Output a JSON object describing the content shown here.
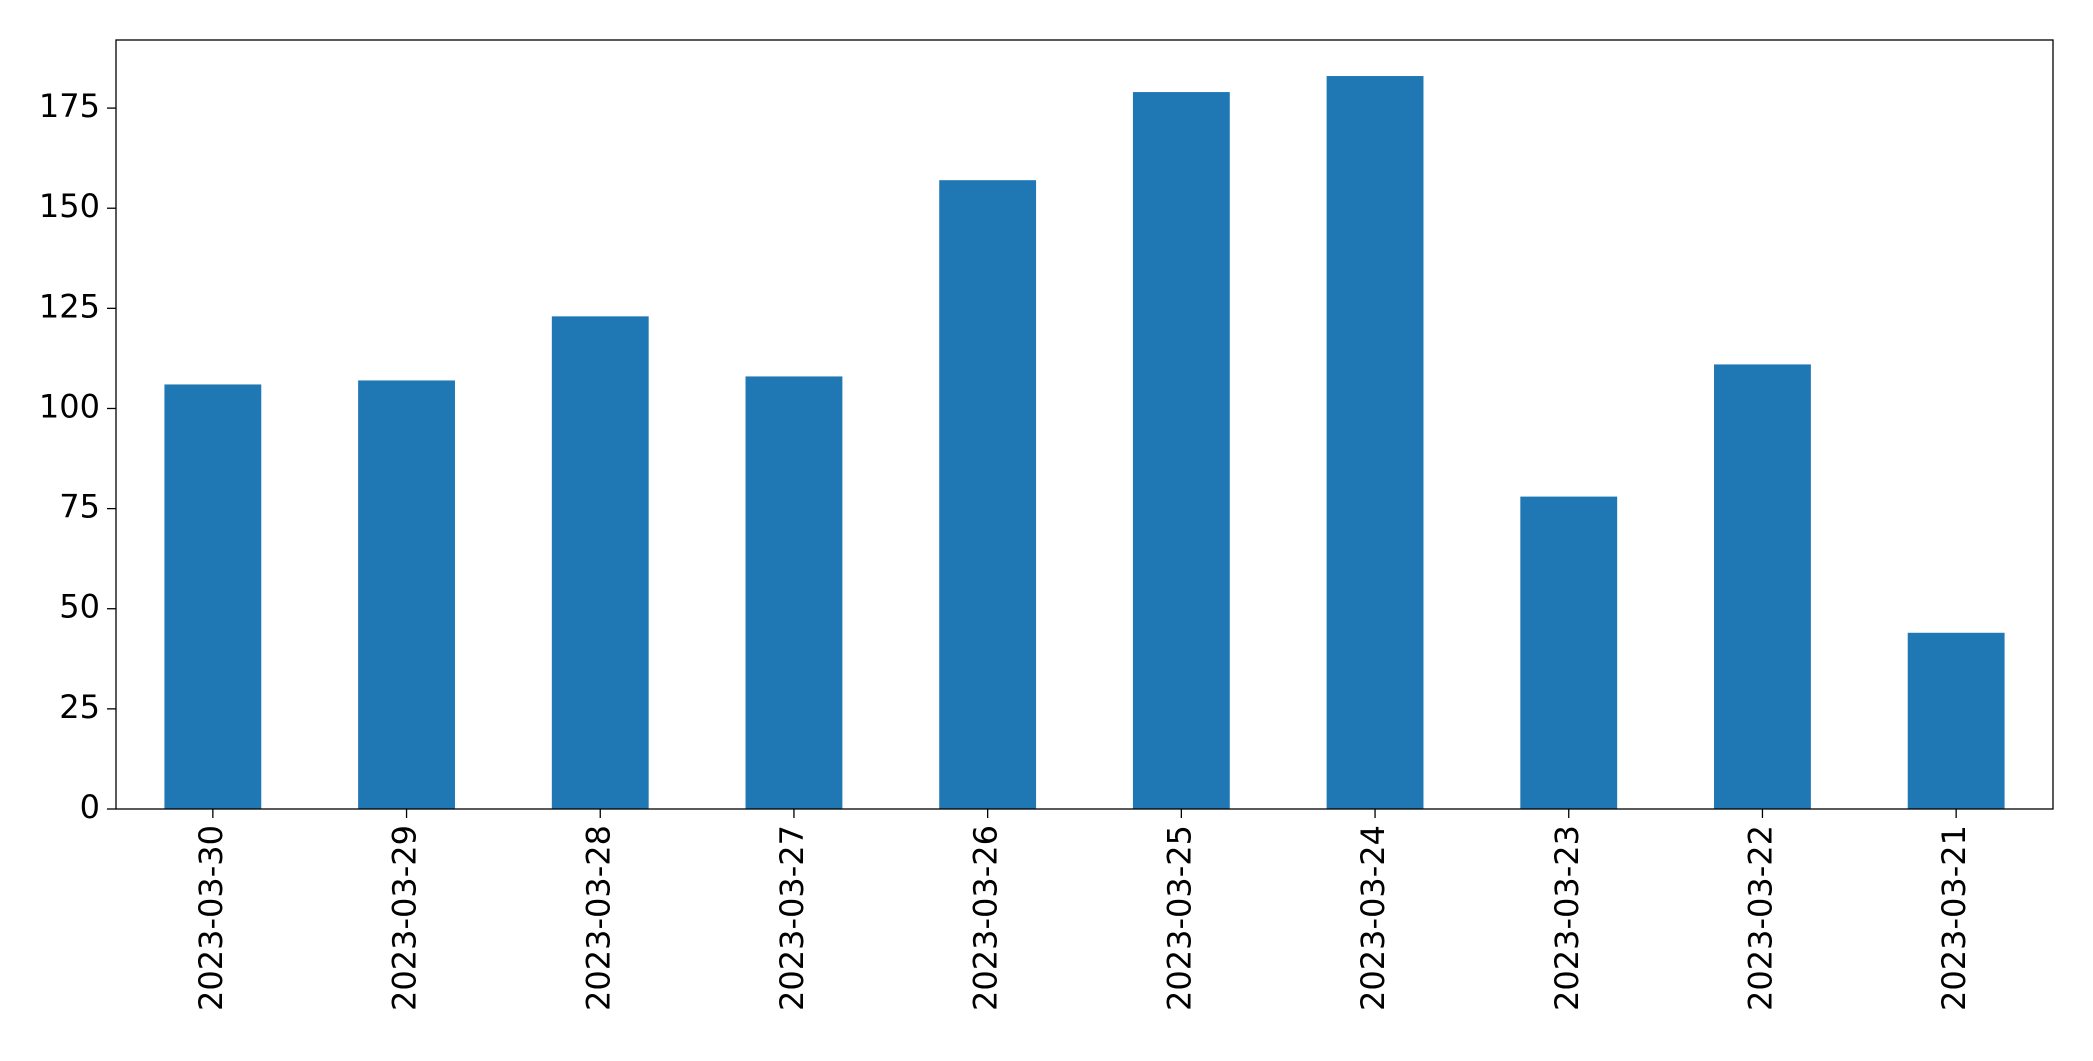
{
  "chart_data": {
    "type": "bar",
    "categories": [
      "2023-03-30",
      "2023-03-29",
      "2023-03-28",
      "2023-03-27",
      "2023-03-26",
      "2023-03-25",
      "2023-03-24",
      "2023-03-23",
      "2023-03-22",
      "2023-03-21"
    ],
    "values": [
      106,
      107,
      123,
      108,
      157,
      179,
      183,
      78,
      111,
      44
    ],
    "color": "#1f77b4",
    "ylim": [
      0,
      192
    ],
    "yticks": [
      0,
      25,
      50,
      75,
      100,
      125,
      150,
      175
    ],
    "grid": false
  }
}
